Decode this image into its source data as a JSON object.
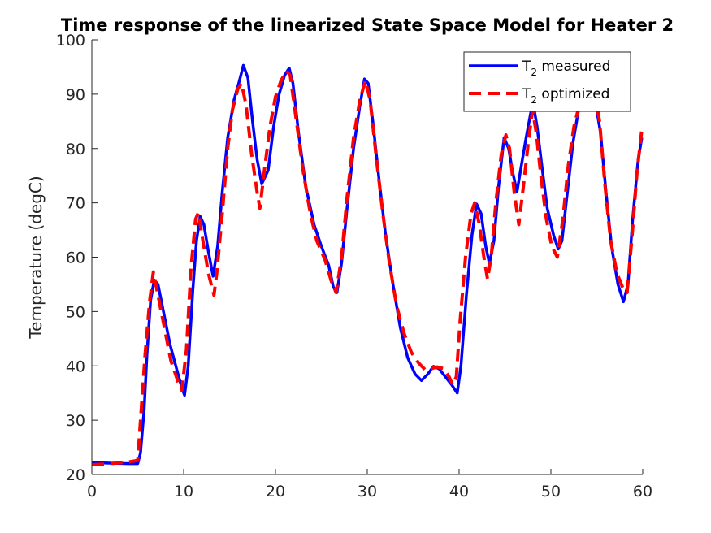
{
  "chart_data": {
    "type": "line",
    "title": "Time response of the linearized State Space Model for Heater 2",
    "xlabel": "",
    "ylabel": "Temperature (degC)",
    "xlim": [
      0,
      60
    ],
    "ylim": [
      20,
      100
    ],
    "xticks": [
      0,
      10,
      20,
      30,
      40,
      50,
      60
    ],
    "yticks": [
      20,
      30,
      40,
      50,
      60,
      70,
      80,
      90,
      100
    ],
    "grid": false,
    "legend_position": "top-right",
    "series": [
      {
        "name": "T2 measured",
        "legend_main": "T",
        "legend_sub": "2",
        "legend_rest": " measured",
        "color": "#0000ff",
        "style": "solid",
        "points": [
          [
            0,
            22.2
          ],
          [
            2,
            22.1
          ],
          [
            4,
            22.0
          ],
          [
            5,
            22.0
          ],
          [
            5.3,
            24
          ],
          [
            5.7,
            32
          ],
          [
            6.0,
            42
          ],
          [
            6.4,
            52
          ],
          [
            6.8,
            55.8
          ],
          [
            7.2,
            55
          ],
          [
            7.8,
            50
          ],
          [
            8.5,
            44
          ],
          [
            9.3,
            39
          ],
          [
            9.8,
            36
          ],
          [
            10.1,
            34.6
          ],
          [
            10.5,
            40
          ],
          [
            11.0,
            54
          ],
          [
            11.4,
            63
          ],
          [
            11.8,
            67.5
          ],
          [
            12.2,
            66
          ],
          [
            12.7,
            61
          ],
          [
            13.2,
            56.5
          ],
          [
            13.7,
            62
          ],
          [
            14.2,
            72
          ],
          [
            14.8,
            82
          ],
          [
            15.5,
            89
          ],
          [
            16.0,
            92
          ],
          [
            16.5,
            95.3
          ],
          [
            17.0,
            93
          ],
          [
            17.5,
            85
          ],
          [
            18.0,
            78
          ],
          [
            18.5,
            73.5
          ],
          [
            19.2,
            76
          ],
          [
            19.8,
            84
          ],
          [
            20.4,
            90
          ],
          [
            21.0,
            93.5
          ],
          [
            21.5,
            94.8
          ],
          [
            21.9,
            92
          ],
          [
            22.5,
            83
          ],
          [
            23.3,
            73
          ],
          [
            24.2,
            66
          ],
          [
            25.0,
            62
          ],
          [
            25.8,
            58.5
          ],
          [
            26.3,
            54.5
          ],
          [
            26.7,
            53.5
          ],
          [
            27.2,
            59
          ],
          [
            27.8,
            69
          ],
          [
            28.5,
            80
          ],
          [
            29.2,
            88
          ],
          [
            29.7,
            92.8
          ],
          [
            30.1,
            92
          ],
          [
            30.6,
            85
          ],
          [
            31.3,
            74
          ],
          [
            32.0,
            64
          ],
          [
            32.8,
            55
          ],
          [
            33.6,
            47
          ],
          [
            34.4,
            41.5
          ],
          [
            35.2,
            38.5
          ],
          [
            35.9,
            37.3
          ],
          [
            36.6,
            38.5
          ],
          [
            37.2,
            39.9
          ],
          [
            37.8,
            39.5
          ],
          [
            38.5,
            38
          ],
          [
            39.2,
            36.5
          ],
          [
            39.8,
            35
          ],
          [
            40.2,
            40
          ],
          [
            40.8,
            53
          ],
          [
            41.4,
            64
          ],
          [
            41.9,
            69.8
          ],
          [
            42.4,
            68
          ],
          [
            42.9,
            62
          ],
          [
            43.3,
            58.8
          ],
          [
            43.8,
            63
          ],
          [
            44.3,
            73
          ],
          [
            44.9,
            82
          ],
          [
            45.4,
            80
          ],
          [
            45.8,
            76
          ],
          [
            46.3,
            72
          ],
          [
            46.8,
            77
          ],
          [
            47.3,
            82
          ],
          [
            47.8,
            86.5
          ],
          [
            48.1,
            88
          ],
          [
            48.5,
            84
          ],
          [
            49.0,
            77
          ],
          [
            49.6,
            69
          ],
          [
            50.3,
            64
          ],
          [
            50.8,
            61.5
          ],
          [
            51.2,
            63
          ],
          [
            51.8,
            72
          ],
          [
            52.4,
            81
          ],
          [
            53.1,
            88
          ],
          [
            53.6,
            90
          ],
          [
            54.2,
            91.5
          ],
          [
            54.8,
            89
          ],
          [
            55.4,
            83
          ],
          [
            56.0,
            72
          ],
          [
            56.6,
            62
          ],
          [
            57.3,
            55
          ],
          [
            57.9,
            51.8
          ],
          [
            58.4,
            55
          ],
          [
            58.9,
            67
          ],
          [
            59.5,
            78
          ],
          [
            59.9,
            82
          ]
        ]
      },
      {
        "name": "T2 optimized",
        "legend_main": "T",
        "legend_sub": "2",
        "legend_rest": " optimized",
        "color": "#ff0000",
        "style": "dashed",
        "points": [
          [
            0,
            21.8
          ],
          [
            2,
            22.0
          ],
          [
            4,
            22.3
          ],
          [
            5,
            22.6
          ],
          [
            5.3,
            30
          ],
          [
            5.8,
            42
          ],
          [
            6.3,
            52
          ],
          [
            6.7,
            57.3
          ],
          [
            7.2,
            53
          ],
          [
            7.9,
            47
          ],
          [
            8.6,
            41
          ],
          [
            9.4,
            37
          ],
          [
            9.8,
            35.5
          ],
          [
            10.3,
            43
          ],
          [
            10.8,
            58
          ],
          [
            11.3,
            67
          ],
          [
            11.6,
            68.2
          ],
          [
            12.1,
            63
          ],
          [
            12.7,
            57
          ],
          [
            13.3,
            53
          ],
          [
            13.6,
            57
          ],
          [
            14.2,
            68
          ],
          [
            14.8,
            80
          ],
          [
            15.3,
            87
          ],
          [
            15.9,
            91
          ],
          [
            16.3,
            92
          ],
          [
            16.8,
            88
          ],
          [
            17.4,
            79
          ],
          [
            18.0,
            72
          ],
          [
            18.3,
            69
          ],
          [
            18.8,
            76
          ],
          [
            19.4,
            84
          ],
          [
            20.0,
            89.5
          ],
          [
            20.6,
            92.5
          ],
          [
            21.2,
            94.3
          ],
          [
            21.6,
            93.5
          ],
          [
            22.2,
            86
          ],
          [
            23.0,
            76
          ],
          [
            23.8,
            68
          ],
          [
            24.5,
            63
          ],
          [
            25.4,
            59.5
          ],
          [
            26.1,
            55.5
          ],
          [
            26.6,
            53.5
          ],
          [
            27.2,
            60
          ],
          [
            27.8,
            71
          ],
          [
            28.5,
            82
          ],
          [
            29.2,
            89
          ],
          [
            29.8,
            92.5
          ],
          [
            30.3,
            89
          ],
          [
            31.0,
            78
          ],
          [
            31.7,
            68
          ],
          [
            32.4,
            59
          ],
          [
            33.2,
            51
          ],
          [
            34.0,
            46
          ],
          [
            34.8,
            42.5
          ],
          [
            35.6,
            40.5
          ],
          [
            36.3,
            39.3
          ],
          [
            37.0,
            39.5
          ],
          [
            37.6,
            39.8
          ],
          [
            38.3,
            39.5
          ],
          [
            38.9,
            38
          ],
          [
            39.3,
            36.5
          ],
          [
            39.7,
            38
          ],
          [
            40.1,
            48
          ],
          [
            40.7,
            60
          ],
          [
            41.3,
            68
          ],
          [
            41.7,
            70
          ],
          [
            42.2,
            66
          ],
          [
            42.7,
            60
          ],
          [
            43.1,
            56
          ],
          [
            43.5,
            60
          ],
          [
            44.0,
            70
          ],
          [
            44.6,
            79
          ],
          [
            45.1,
            82.5
          ],
          [
            45.5,
            80
          ],
          [
            46.0,
            72
          ],
          [
            46.5,
            66
          ],
          [
            47.0,
            73
          ],
          [
            47.6,
            82
          ],
          [
            48.0,
            87
          ],
          [
            48.4,
            83
          ],
          [
            48.9,
            75
          ],
          [
            49.5,
            67
          ],
          [
            50.1,
            62
          ],
          [
            50.7,
            60
          ],
          [
            51.3,
            67
          ],
          [
            51.9,
            77
          ],
          [
            52.5,
            84
          ],
          [
            53.1,
            88
          ],
          [
            53.6,
            90
          ],
          [
            54.2,
            91
          ],
          [
            54.8,
            90
          ],
          [
            55.3,
            85
          ],
          [
            55.9,
            73
          ],
          [
            56.5,
            63
          ],
          [
            57.2,
            57
          ],
          [
            57.8,
            54.5
          ],
          [
            58.3,
            53.5
          ],
          [
            58.8,
            63
          ],
          [
            59.4,
            76
          ],
          [
            59.9,
            83.5
          ]
        ]
      }
    ]
  }
}
